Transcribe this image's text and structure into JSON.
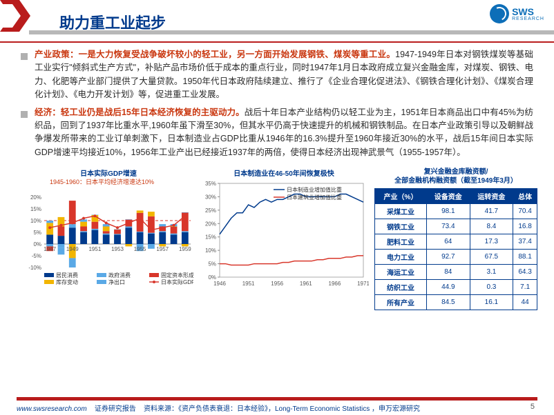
{
  "header": {
    "title": "助力重工业起步",
    "logo_text": "SWS",
    "logo_sub": "RESEARCH"
  },
  "para1": {
    "hl": "产业政策：一是大力恢复受战争破坏较小的轻工业，另一方面开始发展钢铁、煤炭等重工业。",
    "body": "1947-1949年日本对钢铁煤炭等基础工业实行\"倾斜式生产方式\"，补贴产品市场价低于成本的重点行业，同时1947年1月日本政府成立复兴金融金库，对煤炭、钢铁、电力、化肥等产业部门提供了大量贷款。1950年代日本政府陆续建立、推行了《企业合理化促进法》、《钢铁合理化计划》、《煤炭合理化计划》、《电力开发计划》等，促进重工业发展。"
  },
  "para2": {
    "hl": "经济：轻工业仍是战后15年日本经济恢复的主驱动力。",
    "body": "战后十年日本产业结构仍以轻工业为主，1951年日本商品出口中有45%为纺织品，回到了1937年比重水平,1960年虽下滑至30%，但其水平仍高于快速提升的机械和钢铁制品。在日本产业政策引导以及朝鲜战争爆发所带来的工业订单刺激下，日本制造业占GDP比重从1946年的16.3%提升至1960年接近30%的水平，战后15年间日本实际GDP增速平均接近10%，1956年工业产出已经接近1937年的两倍，使得日本经济出现神武景气（1955-1957年）。"
  },
  "chart1": {
    "type": "bar-line",
    "title": "日本实际GDP增速",
    "annotation": "1945-1960：日本平均经济增速达10%",
    "x_labels": [
      "1947",
      "1949",
      "1951",
      "1953",
      "1955",
      "1957",
      "1959"
    ],
    "y_ticks": [
      -10,
      -5,
      0,
      5,
      10,
      15,
      20
    ],
    "y_tick_labels": [
      "-10%",
      "-5%",
      "0%",
      "5%",
      "10%",
      "15%",
      "20%"
    ],
    "dash_ref": 10,
    "series": {
      "consumption": {
        "label": "居民消费",
        "color": "#003a8c",
        "values": [
          4,
          3.5,
          7,
          5,
          6,
          4,
          4,
          7,
          5,
          4.5,
          5,
          4,
          5
        ]
      },
      "government": {
        "label": "政府消费",
        "color": "#5aa9e6",
        "values": [
          -1,
          -1.5,
          1.5,
          0.5,
          0.5,
          0.5,
          0.3,
          0.5,
          0.3,
          0.3,
          0.5,
          0.5,
          0.5
        ]
      },
      "fixed_cap": {
        "label": "固定资本形成",
        "color": "#d8362a",
        "values": [
          -2,
          4,
          10,
          2,
          3,
          1,
          2,
          3,
          8,
          7,
          2,
          3,
          8
        ]
      },
      "inventory": {
        "label": "库存变动",
        "color": "#f2b500",
        "values": [
          5,
          4,
          -6,
          2,
          3,
          2,
          0,
          -1,
          1,
          2,
          -1,
          0,
          -1
        ]
      },
      "net_export": {
        "label": "净出口",
        "color": "#5aa9e6",
        "values": [
          1,
          -3,
          -4,
          1,
          0,
          1,
          0,
          0,
          -3,
          -2,
          1,
          1,
          0
        ]
      }
    },
    "line": {
      "label": "日本实际GDP同比",
      "color": "#d8362a",
      "values": [
        7,
        8,
        9,
        11,
        12,
        9,
        7,
        9,
        11,
        6,
        7,
        8,
        12
      ]
    },
    "background_color": "#ffffff"
  },
  "chart2": {
    "type": "line",
    "title": "日本制造业在46-50年间恢复极快",
    "x_labels": [
      "1946",
      "1951",
      "1956",
      "1961",
      "1966",
      "1971"
    ],
    "y_ticks": [
      0,
      5,
      10,
      15,
      20,
      25,
      30,
      35
    ],
    "y_tick_labels": [
      "0%",
      "5%",
      "10%",
      "15%",
      "20%",
      "25%",
      "30%",
      "35%"
    ],
    "series": [
      {
        "label": "日本制造业增加值比重",
        "color": "#003a8c",
        "values": [
          16,
          19,
          22,
          24,
          24,
          27,
          26,
          28,
          29,
          28,
          29,
          29,
          30,
          31,
          31,
          30,
          30,
          30,
          30,
          30,
          30,
          31,
          31,
          30,
          29,
          28
        ]
      },
      {
        "label": "日本建筑业增加值比重",
        "color": "#d8362a",
        "values": [
          5,
          5,
          4.5,
          4.5,
          4.5,
          4.5,
          5,
          5,
          5,
          5,
          5,
          5.5,
          5.5,
          6,
          6,
          6,
          6,
          6.5,
          6.5,
          7,
          7,
          7,
          7.5,
          7.5,
          8,
          8
        ]
      }
    ],
    "background_color": "#ffffff",
    "border_color": "#888"
  },
  "table": {
    "title_l1": "复兴金融金库融资额/",
    "title_l2": "全部金融机构融资额（截至1949年3月）",
    "columns": [
      "产业（%）",
      "设备资金",
      "运转资金",
      "总体"
    ],
    "rows": [
      [
        "采煤工业",
        "98.1",
        "41.7",
        "70.4"
      ],
      [
        "钢铁工业",
        "73.4",
        "8.4",
        "16.8"
      ],
      [
        "肥料工业",
        "64",
        "17.3",
        "37.4"
      ],
      [
        "电力工业",
        "92.7",
        "67.5",
        "88.1"
      ],
      [
        "海运工业",
        "84",
        "3.1",
        "64.3"
      ],
      [
        "纺织工业",
        "44.9",
        "0.3",
        "7.1"
      ],
      [
        "所有产业",
        "84.5",
        "16.1",
        "44"
      ]
    ],
    "header_bg": "#003a8c",
    "header_color": "#ffffff",
    "border_color": "#003a8c",
    "cell_color": "#003a8c"
  },
  "footer": {
    "url": "www.swsresearch.com",
    "label": "证券研究报告",
    "source": "资料来源：《资产负债表衰退：日本经验》，Long-Term Economic Statistics ，申万宏源研究",
    "page": "5"
  }
}
